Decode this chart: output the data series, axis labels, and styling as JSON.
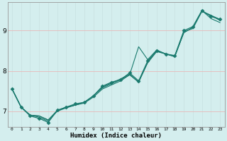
{
  "xlabel": "Humidex (Indice chaleur)",
  "bg_color": "#d4eeee",
  "grid_color_major": "#c8e4e4",
  "grid_color_minor": "#ddf0f0",
  "line_color": "#1a7a6e",
  "xlim": [
    -0.5,
    23.5
  ],
  "ylim": [
    6.6,
    9.7
  ],
  "yticks": [
    7,
    8,
    9
  ],
  "xticks": [
    0,
    1,
    2,
    3,
    4,
    5,
    6,
    7,
    8,
    9,
    10,
    11,
    12,
    13,
    14,
    15,
    16,
    17,
    18,
    19,
    20,
    21,
    22,
    23
  ],
  "series": [
    {
      "x": [
        0,
        1,
        2,
        3,
        4,
        5,
        6,
        7,
        8,
        9,
        10,
        11,
        12,
        13,
        14,
        15,
        16,
        17,
        18,
        19,
        20,
        21,
        22,
        23
      ],
      "y": [
        7.55,
        7.1,
        6.88,
        6.82,
        6.72,
        7.02,
        7.1,
        7.18,
        7.22,
        7.38,
        7.62,
        7.72,
        7.78,
        7.95,
        7.75,
        8.25,
        8.5,
        8.42,
        8.38,
        9.0,
        9.1,
        9.5,
        9.35,
        9.28
      ],
      "marker": "D",
      "markersize": 2.5,
      "lw": 0.9
    },
    {
      "x": [
        0,
        1,
        2,
        3,
        4,
        5,
        6,
        7,
        8,
        9,
        10,
        11,
        12,
        13,
        14,
        15,
        16,
        17,
        18,
        19,
        20,
        21,
        22,
        23
      ],
      "y": [
        7.55,
        7.1,
        6.9,
        6.85,
        6.75,
        7.0,
        7.08,
        7.15,
        7.2,
        7.35,
        7.55,
        7.65,
        7.75,
        7.9,
        8.6,
        8.28,
        8.52,
        8.42,
        8.35,
        8.98,
        9.05,
        9.48,
        9.38,
        9.25
      ],
      "marker": null,
      "markersize": 0,
      "lw": 0.8
    },
    {
      "x": [
        0,
        1,
        2,
        3,
        4,
        5,
        6,
        7,
        8,
        9,
        10,
        11,
        12,
        13,
        14,
        15,
        16,
        17,
        18,
        19,
        20,
        21,
        22,
        23
      ],
      "y": [
        7.55,
        7.1,
        6.9,
        6.88,
        6.78,
        7.0,
        7.1,
        7.15,
        7.22,
        7.38,
        7.6,
        7.7,
        7.8,
        7.92,
        7.72,
        8.2,
        8.48,
        8.42,
        8.36,
        8.95,
        9.08,
        9.48,
        9.38,
        9.28
      ],
      "marker": null,
      "markersize": 0,
      "lw": 0.8
    },
    {
      "x": [
        0,
        1,
        2,
        3,
        4,
        5,
        6,
        7,
        8,
        9,
        10,
        11,
        12,
        13,
        14,
        15,
        16,
        17,
        18,
        19,
        20,
        21,
        22,
        23
      ],
      "y": [
        7.55,
        7.1,
        6.9,
        6.88,
        6.78,
        7.02,
        7.1,
        7.15,
        7.22,
        7.38,
        7.58,
        7.68,
        7.78,
        7.9,
        7.72,
        8.22,
        8.5,
        8.42,
        8.37,
        8.95,
        9.08,
        9.5,
        9.3,
        9.2
      ],
      "marker": null,
      "markersize": 0,
      "lw": 0.8
    }
  ]
}
